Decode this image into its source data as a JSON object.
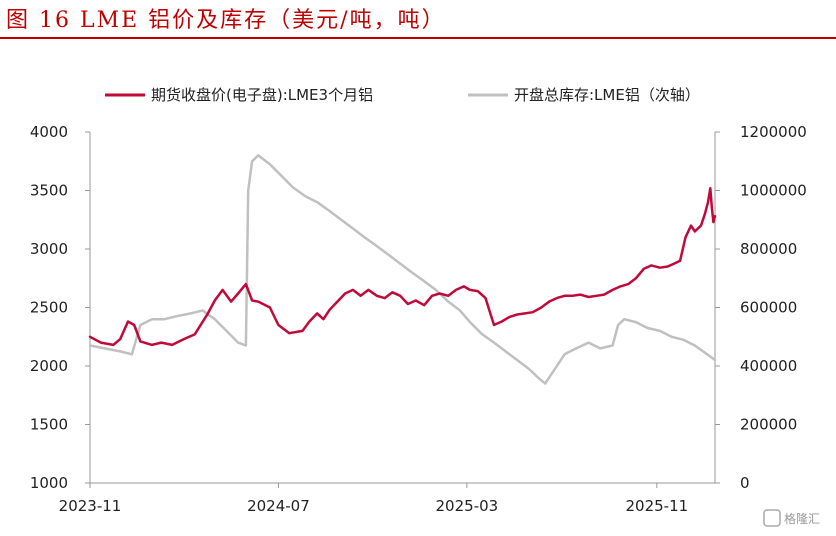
{
  "title": "图 16 LME 铝价及库存（美元/吨，吨）",
  "watermark": "格隆汇",
  "chart_data": {
    "type": "line",
    "x_tick_labels": [
      "2023-11",
      "2024-07",
      "2025-03",
      "2025-11"
    ],
    "x_ticks": [
      "2023-11-01",
      "2024-07-01",
      "2025-03-01",
      "2025-11-01"
    ],
    "x_range": [
      "2023-11-01",
      "2026-01-15"
    ],
    "y_left": {
      "ylim": [
        1000,
        4000
      ],
      "ticks": [
        "1000",
        "1500",
        "2000",
        "2500",
        "3000",
        "3500",
        "4000"
      ]
    },
    "y_right": {
      "ylim": [
        0,
        1200000
      ],
      "ticks": [
        "0",
        "200000",
        "400000",
        "600000",
        "800000",
        "1000000",
        "1200000"
      ]
    },
    "legend_position": "top",
    "grid": false,
    "series": [
      {
        "name": "期货收盘价(电子盘):LME3个月铝",
        "axis": "left",
        "color": "#c00a3a",
        "points": [
          [
            "2023-11-01",
            2250
          ],
          [
            "2023-11-15",
            2200
          ],
          [
            "2023-12-01",
            2180
          ],
          [
            "2023-12-10",
            2230
          ],
          [
            "2023-12-20",
            2380
          ],
          [
            "2023-12-28",
            2350
          ],
          [
            "2024-01-05",
            2210
          ],
          [
            "2024-01-20",
            2180
          ],
          [
            "2024-02-01",
            2200
          ],
          [
            "2024-02-15",
            2180
          ],
          [
            "2024-03-01",
            2230
          ],
          [
            "2024-03-15",
            2270
          ],
          [
            "2024-04-01",
            2450
          ],
          [
            "2024-04-10",
            2560
          ],
          [
            "2024-04-20",
            2650
          ],
          [
            "2024-05-01",
            2550
          ],
          [
            "2024-05-10",
            2620
          ],
          [
            "2024-05-20",
            2700
          ],
          [
            "2024-05-28",
            2560
          ],
          [
            "2024-06-05",
            2550
          ],
          [
            "2024-06-20",
            2500
          ],
          [
            "2024-07-01",
            2350
          ],
          [
            "2024-07-15",
            2280
          ],
          [
            "2024-08-01",
            2300
          ],
          [
            "2024-08-10",
            2380
          ],
          [
            "2024-08-20",
            2450
          ],
          [
            "2024-08-28",
            2400
          ],
          [
            "2024-09-05",
            2480
          ],
          [
            "2024-09-15",
            2550
          ],
          [
            "2024-09-25",
            2620
          ],
          [
            "2024-10-05",
            2650
          ],
          [
            "2024-10-15",
            2600
          ],
          [
            "2024-10-25",
            2650
          ],
          [
            "2024-11-05",
            2600
          ],
          [
            "2024-11-15",
            2580
          ],
          [
            "2024-11-25",
            2630
          ],
          [
            "2024-12-05",
            2600
          ],
          [
            "2024-12-15",
            2530
          ],
          [
            "2024-12-25",
            2560
          ],
          [
            "2025-01-05",
            2520
          ],
          [
            "2025-01-15",
            2600
          ],
          [
            "2025-01-25",
            2620
          ],
          [
            "2025-02-05",
            2600
          ],
          [
            "2025-02-15",
            2650
          ],
          [
            "2025-02-25",
            2680
          ],
          [
            "2025-03-05",
            2650
          ],
          [
            "2025-03-15",
            2640
          ],
          [
            "2025-03-25",
            2580
          ],
          [
            "2025-04-05",
            2350
          ],
          [
            "2025-04-15",
            2380
          ],
          [
            "2025-04-25",
            2420
          ],
          [
            "2025-05-05",
            2440
          ],
          [
            "2025-05-15",
            2450
          ],
          [
            "2025-05-25",
            2460
          ],
          [
            "2025-06-05",
            2500
          ],
          [
            "2025-06-15",
            2550
          ],
          [
            "2025-06-25",
            2580
          ],
          [
            "2025-07-05",
            2600
          ],
          [
            "2025-07-15",
            2600
          ],
          [
            "2025-07-25",
            2610
          ],
          [
            "2025-08-05",
            2590
          ],
          [
            "2025-08-15",
            2600
          ],
          [
            "2025-08-25",
            2610
          ],
          [
            "2025-09-05",
            2650
          ],
          [
            "2025-09-15",
            2680
          ],
          [
            "2025-09-25",
            2700
          ],
          [
            "2025-10-05",
            2750
          ],
          [
            "2025-10-15",
            2830
          ],
          [
            "2025-10-25",
            2860
          ],
          [
            "2025-11-05",
            2840
          ],
          [
            "2025-11-15",
            2850
          ],
          [
            "2025-11-25",
            2880
          ],
          [
            "2025-12-01",
            2900
          ],
          [
            "2025-12-08",
            3100
          ],
          [
            "2025-12-15",
            3200
          ],
          [
            "2025-12-20",
            3150
          ],
          [
            "2025-12-28",
            3200
          ],
          [
            "2026-01-02",
            3300
          ],
          [
            "2026-01-06",
            3400
          ],
          [
            "2026-01-09",
            3520
          ],
          [
            "2026-01-11",
            3350
          ],
          [
            "2026-01-13",
            3230
          ],
          [
            "2026-01-15",
            3280
          ]
        ]
      },
      {
        "name": "开盘总库存:LME铝（次轴）",
        "axis": "right",
        "color": "#c0c0c0",
        "points": [
          [
            "2023-11-01",
            470000
          ],
          [
            "2023-11-20",
            460000
          ],
          [
            "2023-12-10",
            450000
          ],
          [
            "2023-12-25",
            440000
          ],
          [
            "2024-01-05",
            540000
          ],
          [
            "2024-01-20",
            560000
          ],
          [
            "2024-02-05",
            560000
          ],
          [
            "2024-02-20",
            570000
          ],
          [
            "2024-03-10",
            580000
          ],
          [
            "2024-03-25",
            590000
          ],
          [
            "2024-04-10",
            560000
          ],
          [
            "2024-04-25",
            520000
          ],
          [
            "2024-05-10",
            480000
          ],
          [
            "2024-05-20",
            470000
          ],
          [
            "2024-05-23",
            1000000
          ],
          [
            "2024-05-28",
            1100000
          ],
          [
            "2024-06-05",
            1120000
          ],
          [
            "2024-06-20",
            1090000
          ],
          [
            "2024-07-05",
            1050000
          ],
          [
            "2024-07-20",
            1010000
          ],
          [
            "2024-08-05",
            980000
          ],
          [
            "2024-08-20",
            960000
          ],
          [
            "2024-09-05",
            930000
          ],
          [
            "2024-09-20",
            900000
          ],
          [
            "2024-10-05",
            870000
          ],
          [
            "2024-10-20",
            840000
          ],
          [
            "2024-11-05",
            810000
          ],
          [
            "2024-11-20",
            780000
          ],
          [
            "2024-12-05",
            750000
          ],
          [
            "2024-12-20",
            720000
          ],
          [
            "2025-01-05",
            690000
          ],
          [
            "2025-01-20",
            660000
          ],
          [
            "2025-02-05",
            620000
          ],
          [
            "2025-02-20",
            590000
          ],
          [
            "2025-03-05",
            550000
          ],
          [
            "2025-03-20",
            510000
          ],
          [
            "2025-04-05",
            480000
          ],
          [
            "2025-04-20",
            450000
          ],
          [
            "2025-05-05",
            420000
          ],
          [
            "2025-05-20",
            390000
          ],
          [
            "2025-06-01",
            360000
          ],
          [
            "2025-06-10",
            340000
          ],
          [
            "2025-06-20",
            380000
          ],
          [
            "2025-07-05",
            440000
          ],
          [
            "2025-07-20",
            460000
          ],
          [
            "2025-08-05",
            480000
          ],
          [
            "2025-08-20",
            460000
          ],
          [
            "2025-09-05",
            470000
          ],
          [
            "2025-09-12",
            540000
          ],
          [
            "2025-09-20",
            560000
          ],
          [
            "2025-10-05",
            550000
          ],
          [
            "2025-10-20",
            530000
          ],
          [
            "2025-11-05",
            520000
          ],
          [
            "2025-11-20",
            500000
          ],
          [
            "2025-12-05",
            490000
          ],
          [
            "2025-12-20",
            470000
          ],
          [
            "2026-01-05",
            440000
          ],
          [
            "2026-01-15",
            420000
          ]
        ]
      }
    ]
  }
}
